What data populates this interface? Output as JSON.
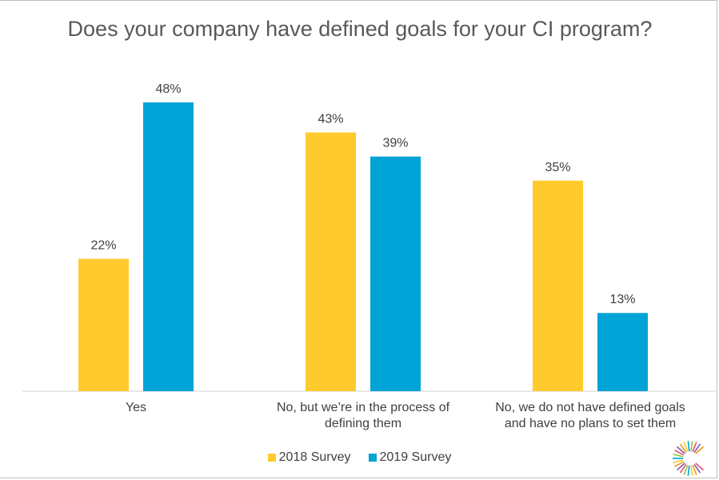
{
  "chart_data": {
    "type": "bar",
    "title": "Does your company have defined goals for your CI program?",
    "categories": [
      [
        "Yes"
      ],
      [
        "No, but we’re in the process of",
        "defining them"
      ],
      [
        "No, we do not have defined goals",
        "and have no plans to set them"
      ]
    ],
    "series": [
      {
        "name": "2018 Survey",
        "color": "#FFCA2D",
        "values": [
          22,
          43,
          35
        ],
        "labels": [
          "22%",
          "43%",
          "35%"
        ]
      },
      {
        "name": "2019 Survey",
        "color": "#00A3D6",
        "values": [
          48,
          39,
          13
        ],
        "labels": [
          "48%",
          "39%",
          "13%"
        ]
      }
    ],
    "ylim": [
      0,
      48
    ],
    "xlabel": "",
    "ylabel": "",
    "grid": false,
    "legend_position": "bottom"
  }
}
